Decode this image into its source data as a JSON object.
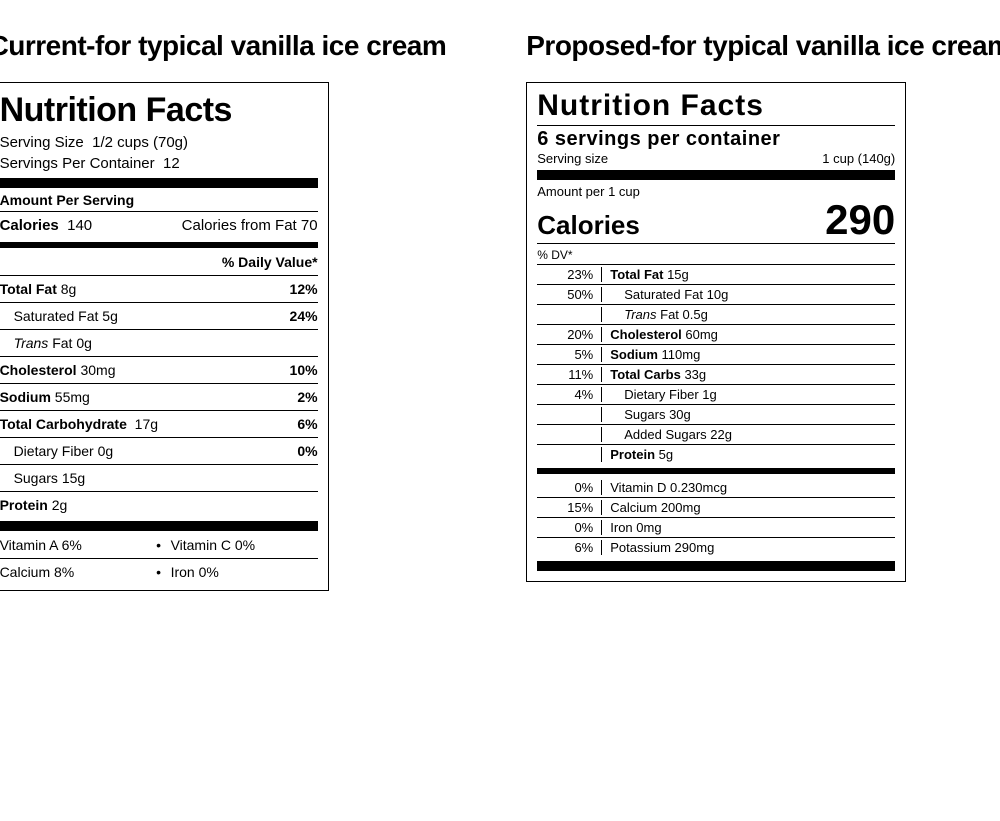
{
  "left": {
    "heading": "Current-for typical vanilla ice cream",
    "title": "Nutrition Facts",
    "serving_size_label": "Serving Size",
    "serving_size_value": "1/2 cups  (70g)",
    "servings_per_container_label": "Servings Per Container",
    "servings_per_container_value": "12",
    "amount_per_serving": "Amount Per Serving",
    "calories_label": "Calories",
    "calories_value": "140",
    "calories_from_fat_label": "Calories from Fat",
    "calories_from_fat_value": "70",
    "daily_value_header": "% Daily Value*",
    "rows": {
      "total_fat": {
        "label": "Total Fat",
        "amount": "8g",
        "dv": "12%"
      },
      "sat_fat": {
        "label": "Saturated Fat",
        "amount": "5g",
        "dv": "24%"
      },
      "trans_fat_l": "Trans",
      "trans_fat_r": "Fat 0g",
      "cholesterol": {
        "label": "Cholesterol",
        "amount": "30mg",
        "dv": "10%"
      },
      "sodium": {
        "label": "Sodium",
        "amount": "55mg",
        "dv": "2%"
      },
      "total_carb": {
        "label": "Total Carbohydrate",
        "amount": "17g",
        "dv": "6%"
      },
      "fiber": {
        "label": "Dietary Fiber",
        "amount": "0g",
        "dv": "0%"
      },
      "sugars": {
        "label": "Sugars",
        "amount": "15g"
      },
      "protein": {
        "label": "Protein",
        "amount": "2g"
      }
    },
    "vitamins": {
      "a": "Vitamin A 6%",
      "c": "Vitamin C 0%",
      "calcium": "Calcium 8%",
      "iron": "Iron 0%"
    }
  },
  "right": {
    "heading": "Proposed-for typical vanilla ice cream",
    "title": "Nutrition Facts",
    "servings_per_container": "6 servings per container",
    "serving_size_label": "Serving size",
    "serving_size_value": "1 cup (140g)",
    "amount_per": "Amount per 1 cup",
    "calories_label": "Calories",
    "calories_value": "290",
    "dv_header": "% DV*",
    "rows": {
      "total_fat": {
        "dv": "23%",
        "label": "Total Fat",
        "amount": "15g"
      },
      "sat_fat": {
        "dv": "50%",
        "label": "Saturated Fat",
        "amount": "10g"
      },
      "trans_fat_l": "Trans",
      "trans_fat_r": "Fat 0.5g",
      "cholesterol": {
        "dv": "20%",
        "label": "Cholesterol",
        "amount": "60mg"
      },
      "sodium": {
        "dv": "5%",
        "label": "Sodium",
        "amount": "110mg"
      },
      "total_carb": {
        "dv": "11%",
        "label": "Total Carbs",
        "amount": "33g"
      },
      "fiber": {
        "dv": "4%",
        "label": "Dietary Fiber",
        "amount": "1g"
      },
      "sugars": {
        "label": "Sugars",
        "amount": "30g"
      },
      "added_sugars": {
        "label": "Added Sugars",
        "amount": "22g"
      },
      "protein": {
        "label": "Protein",
        "amount": "5g"
      }
    },
    "vitamins": {
      "d": {
        "dv": "0%",
        "text": "Vitamin D 0.230mcg"
      },
      "calcium": {
        "dv": "15%",
        "text": "Calcium 200mg"
      },
      "iron": {
        "dv": "0%",
        "text": "Iron 0mg"
      },
      "potassium": {
        "dv": "6%",
        "text": "Potassium 290mg"
      }
    }
  }
}
